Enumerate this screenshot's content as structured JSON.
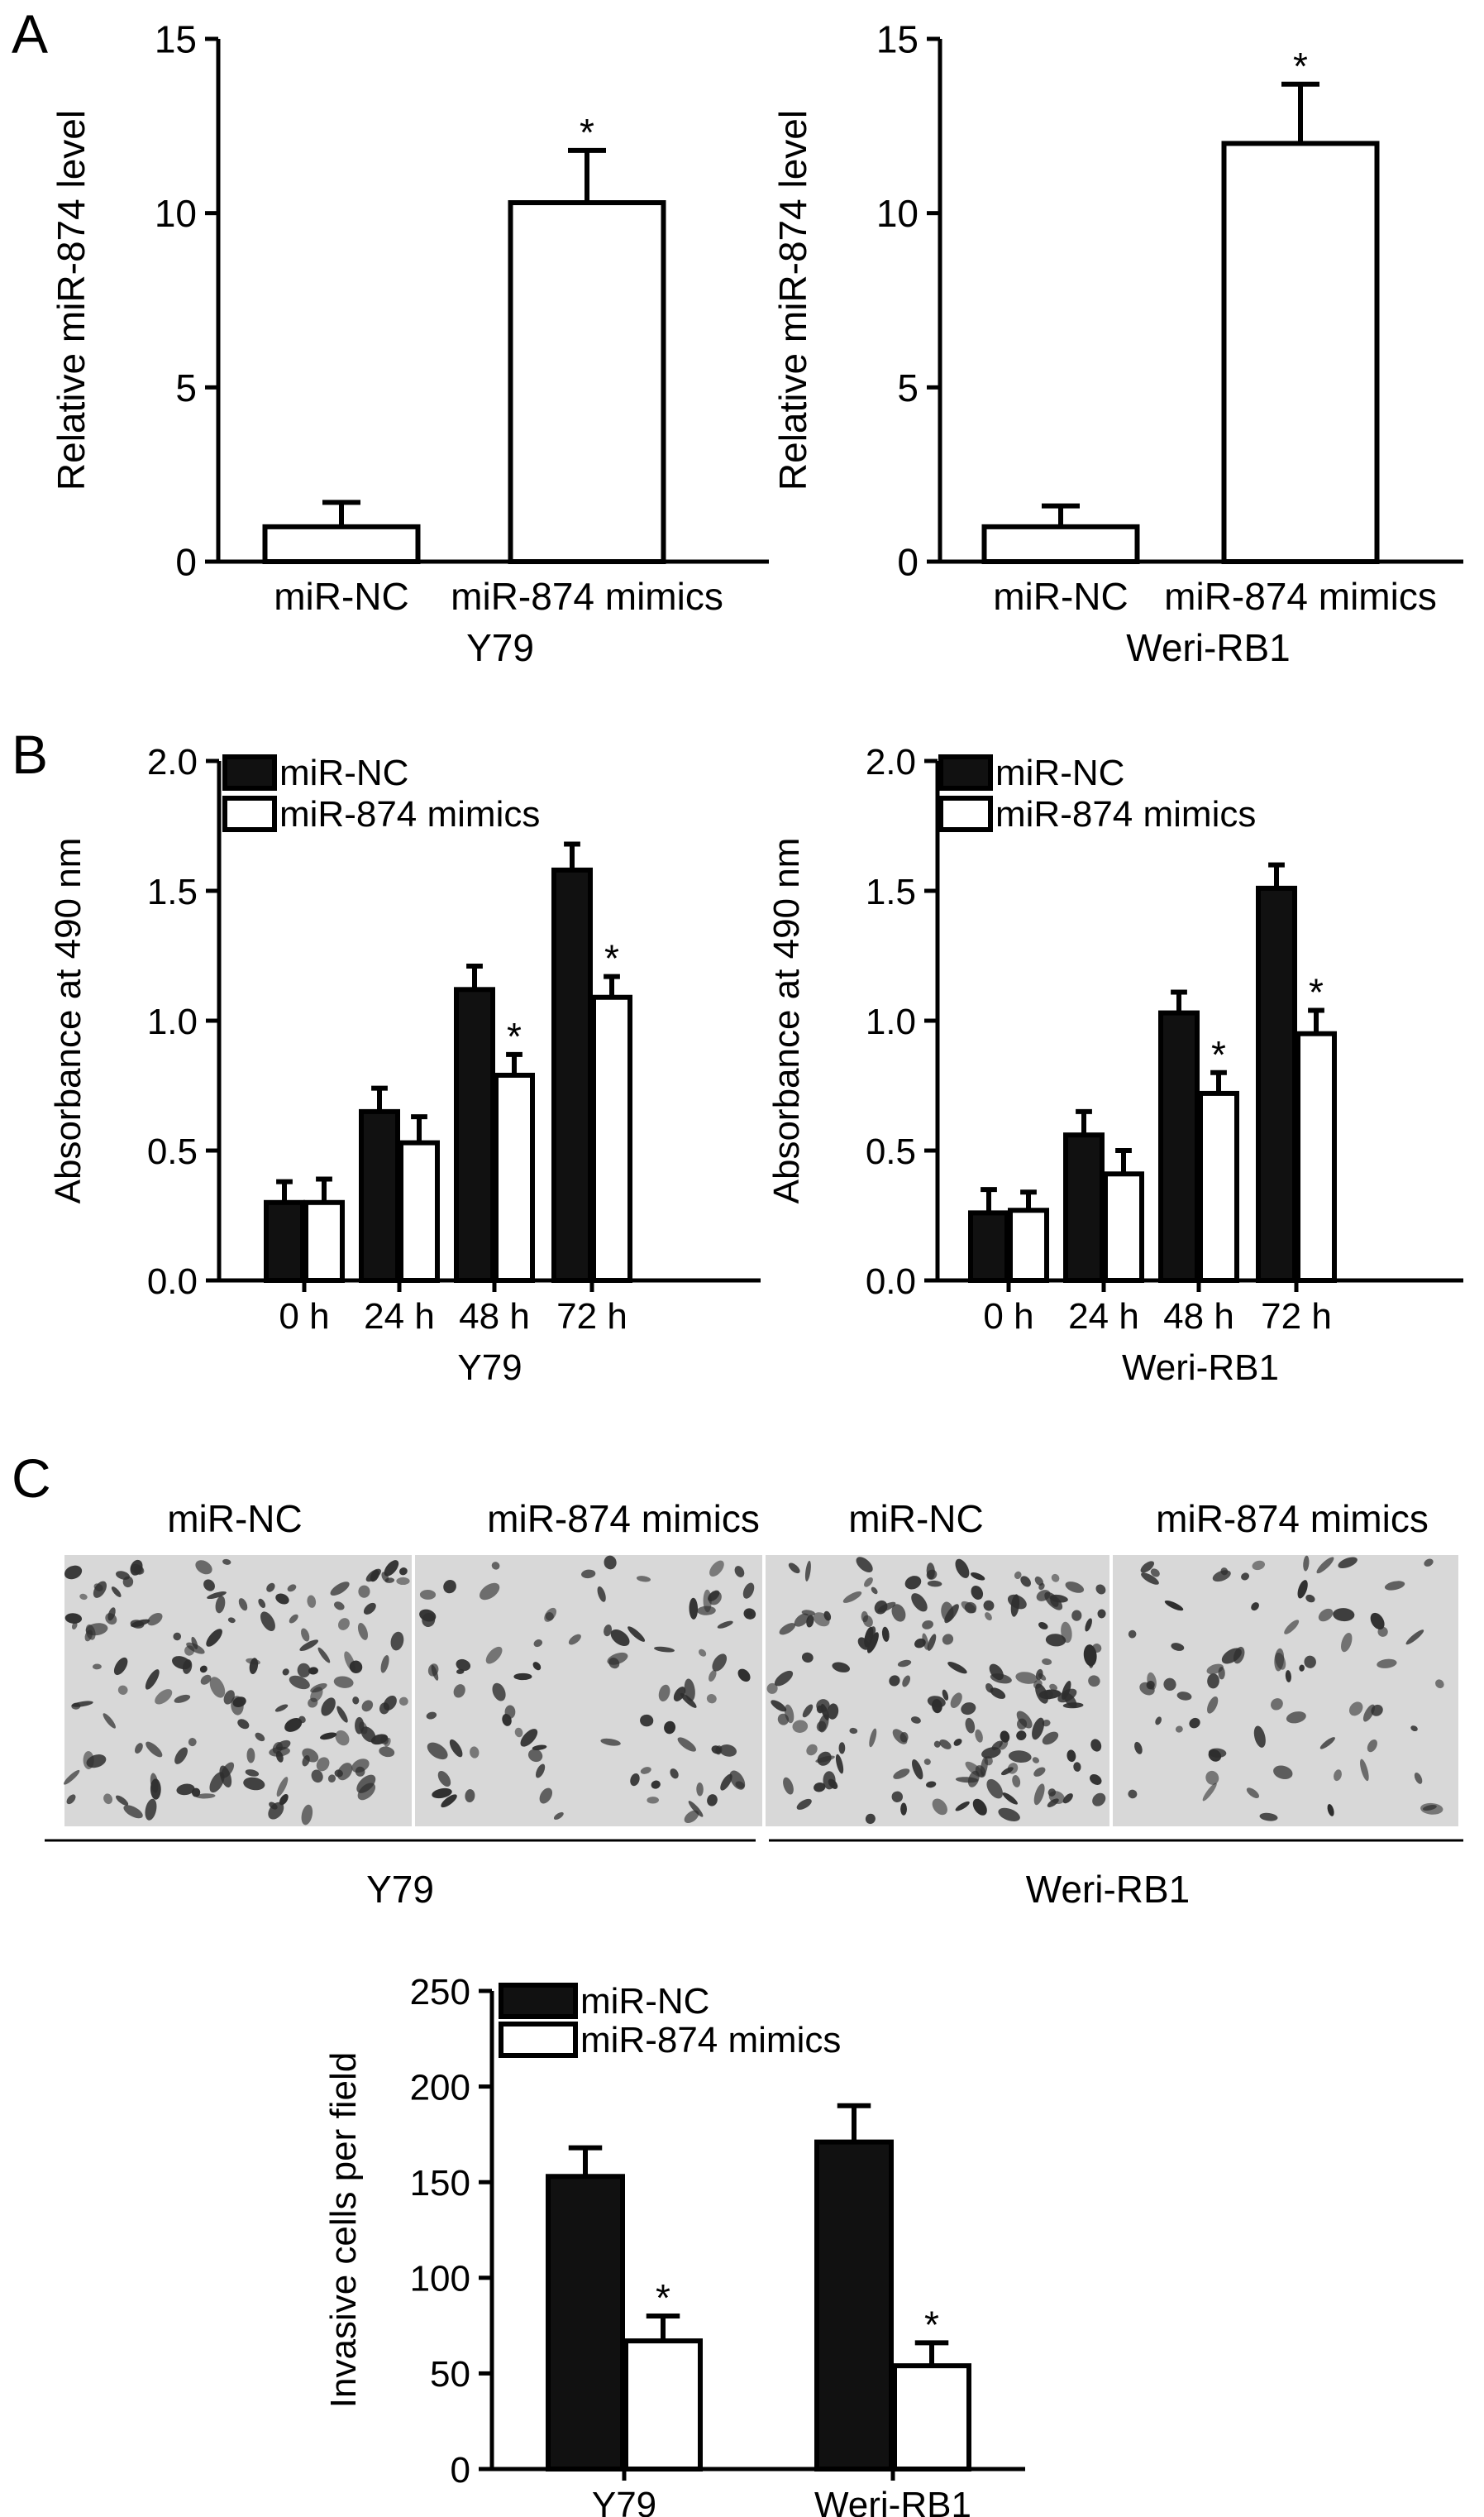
{
  "panel_letters": [
    "A",
    "B",
    "C"
  ],
  "microscopy": {
    "columns": [
      "miR-NC",
      "miR-874 mimics",
      "miR-NC",
      "miR-874 mimics"
    ],
    "groups": [
      "Y79",
      "Weri-RB1"
    ]
  },
  "chart_data": [
    {
      "id": "A1",
      "panel": "A",
      "type": "bar",
      "ylabel": "Relative miR-874 level",
      "xlabel": "Y79",
      "categories": [
        "miR-NC",
        "miR-874 mimics"
      ],
      "series": [
        {
          "values": [
            1.0,
            10.3
          ],
          "errors": [
            0.7,
            1.5
          ],
          "fill": "#ffffff"
        }
      ],
      "significant": [
        false,
        true
      ],
      "ylim": [
        0,
        15
      ],
      "yticks": [
        0,
        5,
        10,
        15
      ]
    },
    {
      "id": "A2",
      "panel": "A",
      "type": "bar",
      "ylabel": "Relative miR-874 level",
      "xlabel": "Weri-RB1",
      "categories": [
        "miR-NC",
        "miR-874 mimics"
      ],
      "series": [
        {
          "values": [
            1.0,
            12.0
          ],
          "errors": [
            0.6,
            1.7
          ],
          "fill": "#ffffff"
        }
      ],
      "significant": [
        false,
        true
      ],
      "ylim": [
        0,
        15
      ],
      "yticks": [
        0,
        5,
        10,
        15
      ]
    },
    {
      "id": "B1",
      "panel": "B",
      "type": "bar",
      "ylabel": "Absorbance at 490 nm",
      "xlabel": "Y79",
      "categories": [
        "0 h",
        "24 h",
        "48 h",
        "72 h"
      ],
      "series": [
        {
          "name": "miR-NC",
          "fill": "#111111",
          "values": [
            0.3,
            0.65,
            1.12,
            1.58
          ],
          "errors": [
            0.08,
            0.09,
            0.09,
            0.1
          ]
        },
        {
          "name": "miR-874 mimics",
          "fill": "#ffffff",
          "values": [
            0.3,
            0.53,
            0.79,
            1.09
          ],
          "errors": [
            0.09,
            0.1,
            0.08,
            0.08
          ]
        }
      ],
      "significant": [
        [
          false,
          false,
          false,
          false
        ],
        [
          false,
          false,
          true,
          true
        ]
      ],
      "ylim": [
        0,
        2.0
      ],
      "yticks": [
        "0.0",
        "0.5",
        "1.0",
        "1.5",
        "2.0"
      ],
      "legend": "top-left"
    },
    {
      "id": "B2",
      "panel": "B",
      "type": "bar",
      "ylabel": "Absorbance at 490 nm",
      "xlabel": "Weri-RB1",
      "categories": [
        "0 h",
        "24 h",
        "48 h",
        "72 h"
      ],
      "series": [
        {
          "name": "miR-NC",
          "fill": "#111111",
          "values": [
            0.26,
            0.56,
            1.03,
            1.51
          ],
          "errors": [
            0.09,
            0.09,
            0.08,
            0.09
          ]
        },
        {
          "name": "miR-874 mimics",
          "fill": "#ffffff",
          "values": [
            0.27,
            0.41,
            0.72,
            0.95
          ],
          "errors": [
            0.07,
            0.09,
            0.08,
            0.09
          ]
        }
      ],
      "significant": [
        [
          false,
          false,
          false,
          false
        ],
        [
          false,
          false,
          true,
          true
        ]
      ],
      "ylim": [
        0,
        2.0
      ],
      "yticks": [
        "0.0",
        "0.5",
        "1.0",
        "1.5",
        "2.0"
      ],
      "legend": "top-left"
    },
    {
      "id": "C",
      "panel": "C",
      "type": "bar",
      "ylabel": "Invasive cells per field",
      "xlabel": "",
      "categories": [
        "Y79",
        "Weri-RB1"
      ],
      "series": [
        {
          "name": "miR-NC",
          "fill": "#111111",
          "values": [
            153,
            171
          ],
          "errors": [
            15,
            19
          ]
        },
        {
          "name": "miR-874 mimics",
          "fill": "#ffffff",
          "values": [
            67,
            54
          ],
          "errors": [
            13,
            12
          ]
        }
      ],
      "significant": [
        [
          false,
          false
        ],
        [
          true,
          true
        ]
      ],
      "ylim": [
        0,
        250
      ],
      "yticks": [
        0,
        50,
        100,
        150,
        200,
        250
      ],
      "legend": "top-left"
    }
  ]
}
